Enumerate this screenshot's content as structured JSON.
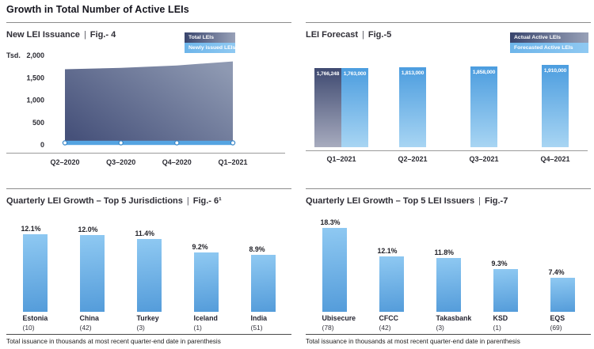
{
  "page": {
    "title": "Growth in Total Number of Active LEIs",
    "sep": "|"
  },
  "footnote": "Total issuance in thousands at most recent quarter-end date in parenthesis",
  "colors": {
    "actual_gradient_start": "#3f4a71",
    "actual_gradient_end": "#a7abbe",
    "forecast_gradient_start": "#4c9ddf",
    "forecast_gradient_end": "#a8d5f3",
    "jurisdiction_bar_top": "#8fc9f2",
    "jurisdiction_bar_bottom": "#549cda",
    "newly_issued_band": "#55a4e2"
  },
  "chart_data": [
    {
      "id": "fig4",
      "type": "area",
      "title": "New LEI Issuance",
      "fig": "Fig.- 4",
      "legend": [
        {
          "label": "Total LEIs",
          "swatch": "dark-gradient"
        },
        {
          "label": "Newly issued LEIs",
          "swatch": "light-blue"
        }
      ],
      "legend_position": "top-right",
      "grid": false,
      "unit": "Tsd.",
      "ylim": [
        0,
        2000
      ],
      "y_ticks": [
        {
          "v": 2000,
          "label": "2,000"
        },
        {
          "v": 1500,
          "label": "1,500"
        },
        {
          "v": 1000,
          "label": "1,000"
        },
        {
          "v": 500,
          "label": "500"
        },
        {
          "v": 0,
          "label": "0"
        }
      ],
      "x": [
        "Q2–2020",
        "Q3–2020",
        "Q4–2020",
        "Q1–2021"
      ],
      "series": [
        {
          "name": "Total LEIs",
          "values": [
            1690,
            1720,
            1775,
            1865
          ]
        },
        {
          "name": "Newly issued LEIs",
          "values": [
            35,
            40,
            40,
            45
          ]
        }
      ]
    },
    {
      "id": "fig5",
      "type": "bar",
      "title": "LEI Forecast",
      "fig": "Fig.-5",
      "legend": [
        {
          "label": "Actual Active LEIs",
          "swatch": "dark-gradient"
        },
        {
          "label": "Forecasted Active LEIs",
          "swatch": "light-blue"
        }
      ],
      "legend_position": "top-right",
      "grid": false,
      "x": [
        "Q1–2021",
        "Q2–2021",
        "Q3–2021",
        "Q4–2021"
      ],
      "groups": [
        {
          "x": "Q1–2021",
          "bars": [
            {
              "series": "Actual Active LEIs",
              "value": 1766248,
              "label": "1,766,248",
              "kind": "actual"
            },
            {
              "series": "Forecasted Active LEIs",
              "value": 1763000,
              "label": "1,763,000",
              "kind": "forecast"
            }
          ]
        },
        {
          "x": "Q2–2021",
          "bars": [
            {
              "series": "Forecasted Active LEIs",
              "value": 1813000,
              "label": "1,813,000",
              "kind": "forecast"
            }
          ]
        },
        {
          "x": "Q3–2021",
          "bars": [
            {
              "series": "Forecasted Active LEIs",
              "value": 1858000,
              "label": "1,858,000",
              "kind": "forecast"
            }
          ]
        },
        {
          "x": "Q4–2021",
          "bars": [
            {
              "series": "Forecasted Active LEIs",
              "value": 1910000,
              "label": "1,910,000",
              "kind": "forecast"
            }
          ]
        }
      ]
    },
    {
      "id": "fig6",
      "type": "bar",
      "title": "Quarterly LEI Growth – Top 5 Jurisdictions",
      "fig": "Fig.- 6¹",
      "grid": false,
      "categories": [
        "Estonia",
        "China",
        "Turkey",
        "Iceland",
        "India"
      ],
      "counts": [
        "(10)",
        "(42)",
        "(3)",
        "(1)",
        "(51)"
      ],
      "values": [
        12.1,
        12.0,
        11.4,
        9.2,
        8.9
      ],
      "labels": [
        "12.1%",
        "12.0%",
        "11.4%",
        "9.2%",
        "8.9%"
      ]
    },
    {
      "id": "fig7",
      "type": "bar",
      "title": "Quarterly LEI Growth – Top 5 LEI Issuers",
      "fig": "Fig.-7",
      "grid": false,
      "categories": [
        "Ubisecure",
        "CFCC",
        "Takasbank",
        "KSD",
        "EQS"
      ],
      "counts": [
        "(78)",
        "(42)",
        "(3)",
        "(1)",
        "(69)"
      ],
      "values": [
        18.3,
        12.1,
        11.8,
        9.3,
        7.4
      ],
      "labels": [
        "18.3%",
        "12.1%",
        "11.8%",
        "9.3%",
        "7.4%"
      ]
    }
  ]
}
